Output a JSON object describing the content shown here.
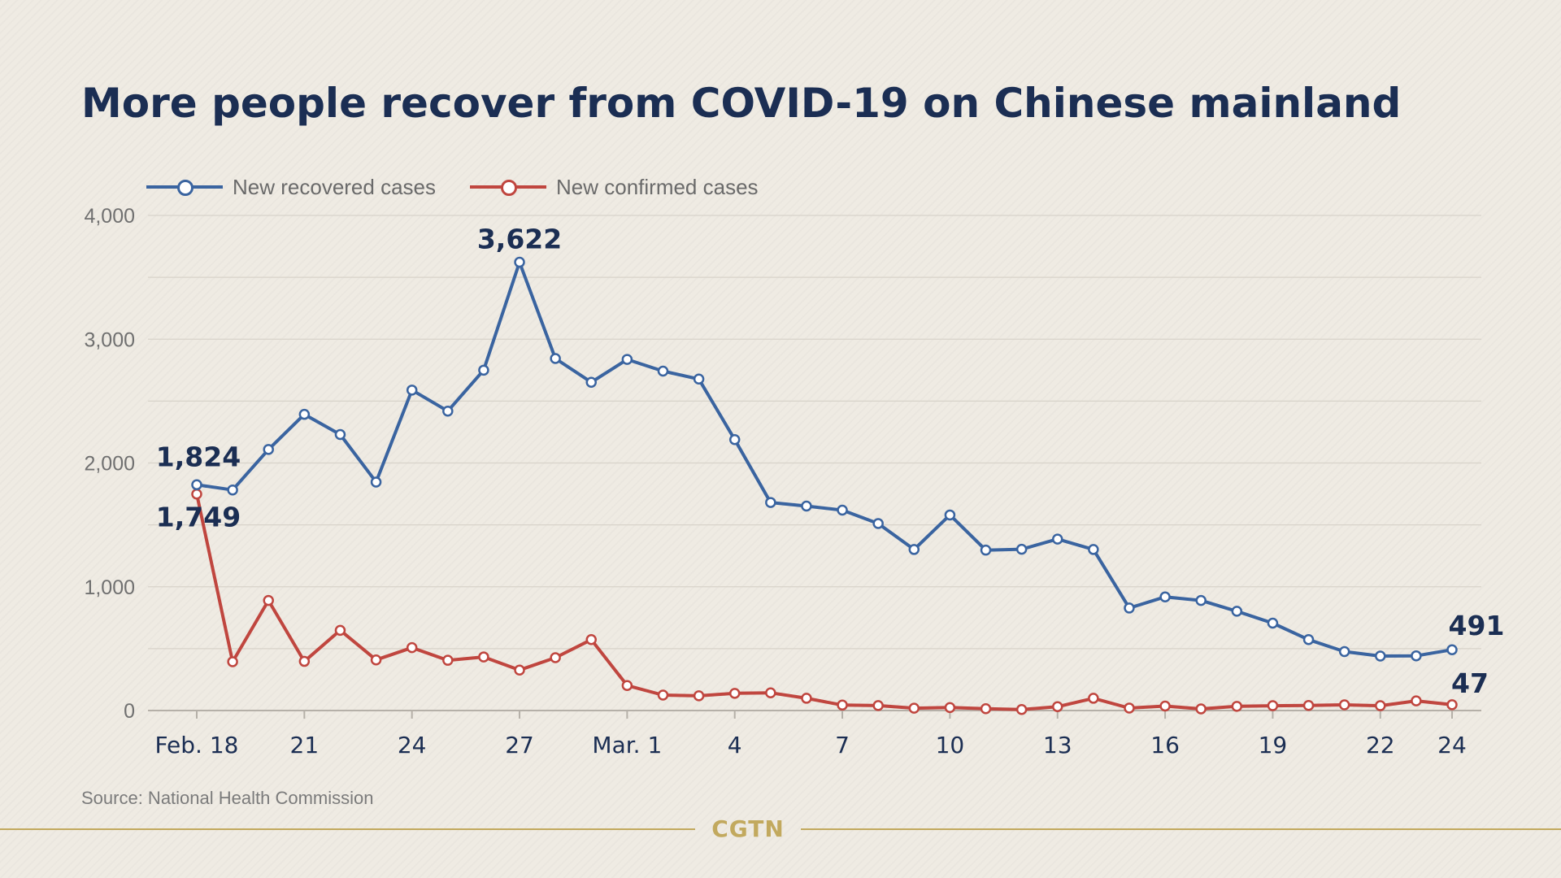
{
  "title": "More people recover from COVID-19 on Chinese mainland",
  "source": "Source: National Health Commission",
  "brand": "CGTN",
  "colors": {
    "recovered": "#3a64a0",
    "confirmed": "#c0463f",
    "title": "#1b2e53",
    "accent": "#c2a95e"
  },
  "chart_data": {
    "type": "line",
    "title": "More people recover from COVID-19 on Chinese mainland",
    "x": [
      "Feb. 18",
      "Feb. 19",
      "Feb. 20",
      "Feb. 21",
      "Feb. 22",
      "Feb. 23",
      "Feb. 24",
      "Feb. 25",
      "Feb. 26",
      "Feb. 27",
      "Feb. 28",
      "Feb. 29",
      "Mar. 1",
      "Mar. 2",
      "Mar. 3",
      "Mar. 4",
      "Mar. 5",
      "Mar. 6",
      "Mar. 7",
      "Mar. 8",
      "Mar. 9",
      "Mar. 10",
      "Mar. 11",
      "Mar. 12",
      "Mar. 13",
      "Mar. 14",
      "Mar. 15",
      "Mar. 16",
      "Mar. 17",
      "Mar. 18",
      "Mar. 19",
      "Mar. 20",
      "Mar. 21",
      "Mar. 22",
      "Mar. 23",
      "Mar. 24"
    ],
    "x_tick_labels": [
      {
        "x": "Feb. 18",
        "label": "Feb. 18"
      },
      {
        "x": "Feb. 21",
        "label": "21"
      },
      {
        "x": "Feb. 24",
        "label": "24"
      },
      {
        "x": "Feb. 27",
        "label": "27"
      },
      {
        "x": "Mar. 1",
        "label": "Mar. 1"
      },
      {
        "x": "Mar. 4",
        "label": "4"
      },
      {
        "x": "Mar. 7",
        "label": "7"
      },
      {
        "x": "Mar. 10",
        "label": "10"
      },
      {
        "x": "Mar. 13",
        "label": "13"
      },
      {
        "x": "Mar. 16",
        "label": "16"
      },
      {
        "x": "Mar. 19",
        "label": "19"
      },
      {
        "x": "Mar. 22",
        "label": "22"
      },
      {
        "x": "Mar. 24",
        "label": "24"
      }
    ],
    "ylim": [
      0,
      4000
    ],
    "y_ticks": [
      0,
      1000,
      2000,
      3000,
      4000
    ],
    "y_tick_labels": [
      "0",
      "1,000",
      "2,000",
      "3,000",
      "4,000"
    ],
    "grid": true,
    "legend_position": "top-left",
    "series": [
      {
        "name": "New recovered cases",
        "color": "#3a64a0",
        "values": [
          1824,
          1782,
          2109,
          2393,
          2230,
          1846,
          2589,
          2419,
          2750,
          3622,
          2844,
          2652,
          2837,
          2742,
          2678,
          2189,
          1681,
          1652,
          1619,
          1511,
          1301,
          1580,
          1296,
          1303,
          1385,
          1301,
          828,
          918,
          889,
          802,
          706,
          573,
          476,
          440,
          442,
          491
        ]
      },
      {
        "name": "New confirmed cases",
        "color": "#c0463f",
        "values": [
          1749,
          394,
          889,
          397,
          648,
          409,
          508,
          406,
          433,
          327,
          427,
          573,
          202,
          125,
          119,
          139,
          143,
          99,
          44,
          40,
          19,
          24,
          15,
          8,
          31,
          99,
          20,
          36,
          13,
          34,
          39,
          41,
          46,
          39,
          78,
          47
        ]
      }
    ],
    "annotations": [
      {
        "series": 0,
        "index": 0,
        "text": "1,824"
      },
      {
        "series": 0,
        "index": 9,
        "text": "3,622"
      },
      {
        "series": 0,
        "index": 35,
        "text": "491"
      },
      {
        "series": 1,
        "index": 0,
        "text": "1,749"
      },
      {
        "series": 1,
        "index": 35,
        "text": "47"
      }
    ]
  }
}
